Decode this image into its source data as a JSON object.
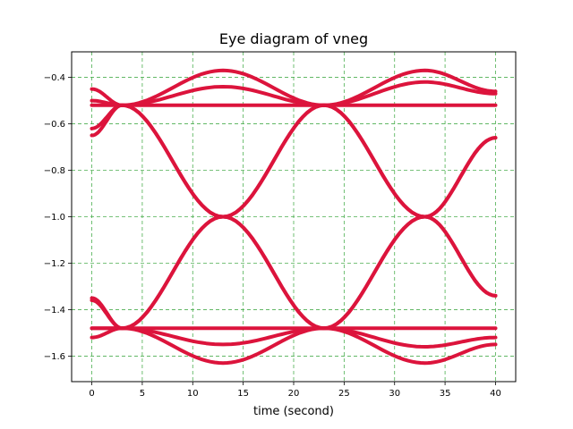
{
  "chart_data": {
    "type": "line",
    "title": "Eye diagram of vneg",
    "xlabel": "time (second)",
    "ylabel": "",
    "xlim": [
      -2,
      42
    ],
    "ylim": [
      -1.71,
      -0.29
    ],
    "xticks": [
      0,
      5,
      10,
      15,
      20,
      25,
      30,
      35,
      40
    ],
    "yticks": [
      -1.6,
      -1.4,
      -1.2,
      -1.0,
      -0.8,
      -0.6,
      -0.4
    ],
    "ytick_labels": [
      "−1.6",
      "−1.4",
      "−1.2",
      "−1.0",
      "−0.8",
      "−0.6",
      "−0.4"
    ],
    "grid": true,
    "grid_color": "#4caf50",
    "line_color": "#dc143c",
    "unit_interval": [
      0,
      20
    ],
    "high_level": -0.52,
    "low_level": -1.48,
    "series": [
      {
        "x": [
          0,
          3,
          13,
          23,
          33,
          40
        ],
        "y": [
          -0.62,
          -0.52,
          -1.0,
          -1.48,
          -1.0,
          -0.66
        ]
      },
      {
        "x": [
          0,
          3,
          13,
          23,
          33,
          40
        ],
        "y": [
          -0.45,
          -0.52,
          -1.0,
          -1.48,
          -1.0,
          -0.66
        ]
      },
      {
        "x": [
          0,
          3,
          13,
          23,
          33,
          40
        ],
        "y": [
          -1.35,
          -1.48,
          -1.0,
          -0.52,
          -1.0,
          -1.34
        ]
      },
      {
        "x": [
          0,
          3,
          13,
          23,
          33,
          40
        ],
        "y": [
          -1.52,
          -1.48,
          -1.0,
          -0.52,
          -1.0,
          -1.34
        ]
      },
      {
        "x": [
          0,
          3,
          13,
          23,
          33,
          40
        ],
        "y": [
          -0.65,
          -0.52,
          -0.37,
          -0.52,
          -0.37,
          -0.46
        ]
      },
      {
        "x": [
          0,
          3,
          13,
          23,
          33,
          40
        ],
        "y": [
          -0.5,
          -0.52,
          -0.44,
          -0.52,
          -0.42,
          -0.47
        ]
      },
      {
        "x": [
          0,
          3,
          13,
          23,
          33,
          40
        ],
        "y": [
          -1.36,
          -1.48,
          -1.63,
          -1.48,
          -1.63,
          -1.55
        ]
      },
      {
        "x": [
          0,
          3,
          13,
          23,
          33,
          40
        ],
        "y": [
          -1.48,
          -1.48,
          -1.55,
          -1.48,
          -1.56,
          -1.52
        ]
      },
      {
        "x": [
          0,
          3,
          13,
          23,
          33,
          40
        ],
        "y": [
          -0.52,
          -0.52,
          -0.52,
          -0.52,
          -0.52,
          -0.52
        ]
      },
      {
        "x": [
          0,
          3,
          13,
          23,
          33,
          40
        ],
        "y": [
          -1.48,
          -1.48,
          -1.48,
          -1.48,
          -1.48,
          -1.48
        ]
      }
    ]
  }
}
